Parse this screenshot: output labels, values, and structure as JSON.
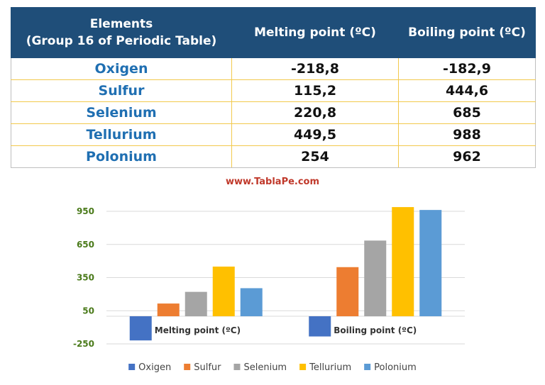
{
  "table": {
    "headers": [
      "Elements\n(Group 16 of Periodic Table)",
      "Melting point (ºC)",
      "Boiling point (ºC)"
    ],
    "header_line1": "Elements",
    "header_line2": "(Group 16 of Periodic Table)",
    "rows": [
      {
        "element": "Oxigen",
        "melting": "-218,8",
        "boiling": "-182,9"
      },
      {
        "element": "Sulfur",
        "melting": "115,2",
        "boiling": "444,6"
      },
      {
        "element": "Selenium",
        "melting": "220,8",
        "boiling": "685"
      },
      {
        "element": "Tellurium",
        "melting": "449,5",
        "boiling": "988"
      },
      {
        "element": "Polonium",
        "melting": "254",
        "boiling": "962"
      }
    ]
  },
  "watermark": "www.TablaPe.com",
  "chart_data": {
    "type": "bar",
    "categories": [
      "Melting point (ºC)",
      "Boiling point (ºC)"
    ],
    "series": [
      {
        "name": "Oxigen",
        "color": "#4472c4",
        "values": [
          -218.8,
          -182.9
        ]
      },
      {
        "name": "Sulfur",
        "color": "#ed7d31",
        "values": [
          115.2,
          444.6
        ]
      },
      {
        "name": "Selenium",
        "color": "#a5a5a5",
        "values": [
          220.8,
          685
        ]
      },
      {
        "name": "Tellurium",
        "color": "#ffc000",
        "values": [
          449.5,
          988
        ]
      },
      {
        "name": "Polonium",
        "color": "#5b9bd5",
        "values": [
          254,
          962
        ]
      }
    ],
    "yticks": [
      -250,
      50,
      350,
      650,
      950
    ],
    "ylim": [
      -250,
      950
    ],
    "grid": true,
    "legend": "bottom",
    "tick_color": "#4a7a1a"
  }
}
